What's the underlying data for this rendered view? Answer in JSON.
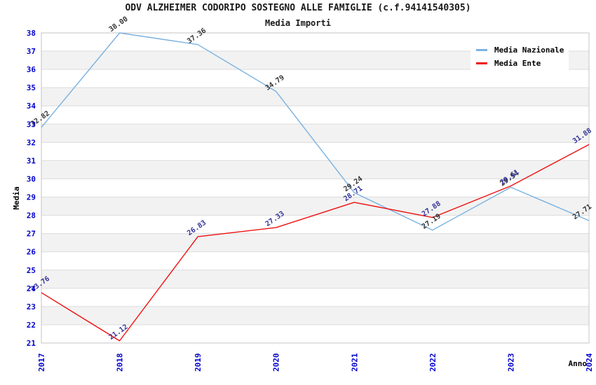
{
  "header": {
    "title": "ODV ALZHEIMER CODORIPO SOSTEGNO ALLE FAMIGLIE (c.f.94141540305)",
    "subtitle": "Media Importi"
  },
  "chart_data": {
    "type": "line",
    "x": [
      "2017",
      "2018",
      "2019",
      "2020",
      "2021",
      "2022",
      "2023",
      "2024"
    ],
    "xlabel": "Anno",
    "ylabel": "Media",
    "ylim": [
      21,
      38
    ],
    "y_tick_step": 1,
    "grid": true,
    "striped_bands": true,
    "legend_position": "top-right",
    "series": [
      {
        "name": "Media Nazionale",
        "color": "#7AB2E0",
        "label_color": "#333333",
        "values": [
          32.82,
          38.0,
          37.36,
          34.79,
          29.24,
          27.19,
          29.54,
          27.71
        ]
      },
      {
        "name": "Media Ente",
        "color": "#EE1111",
        "label_color": "#333399",
        "values": [
          23.76,
          21.12,
          26.83,
          27.33,
          28.71,
          27.88,
          29.61,
          31.88
        ]
      }
    ]
  },
  "colors": {
    "tick_label": "#0000CC",
    "gridline": "#DCDCDC",
    "stripe": "#F2F2F2",
    "plot_border": "#C4C4C4",
    "axis_title": "#000000",
    "background": "#FFFFFF"
  }
}
